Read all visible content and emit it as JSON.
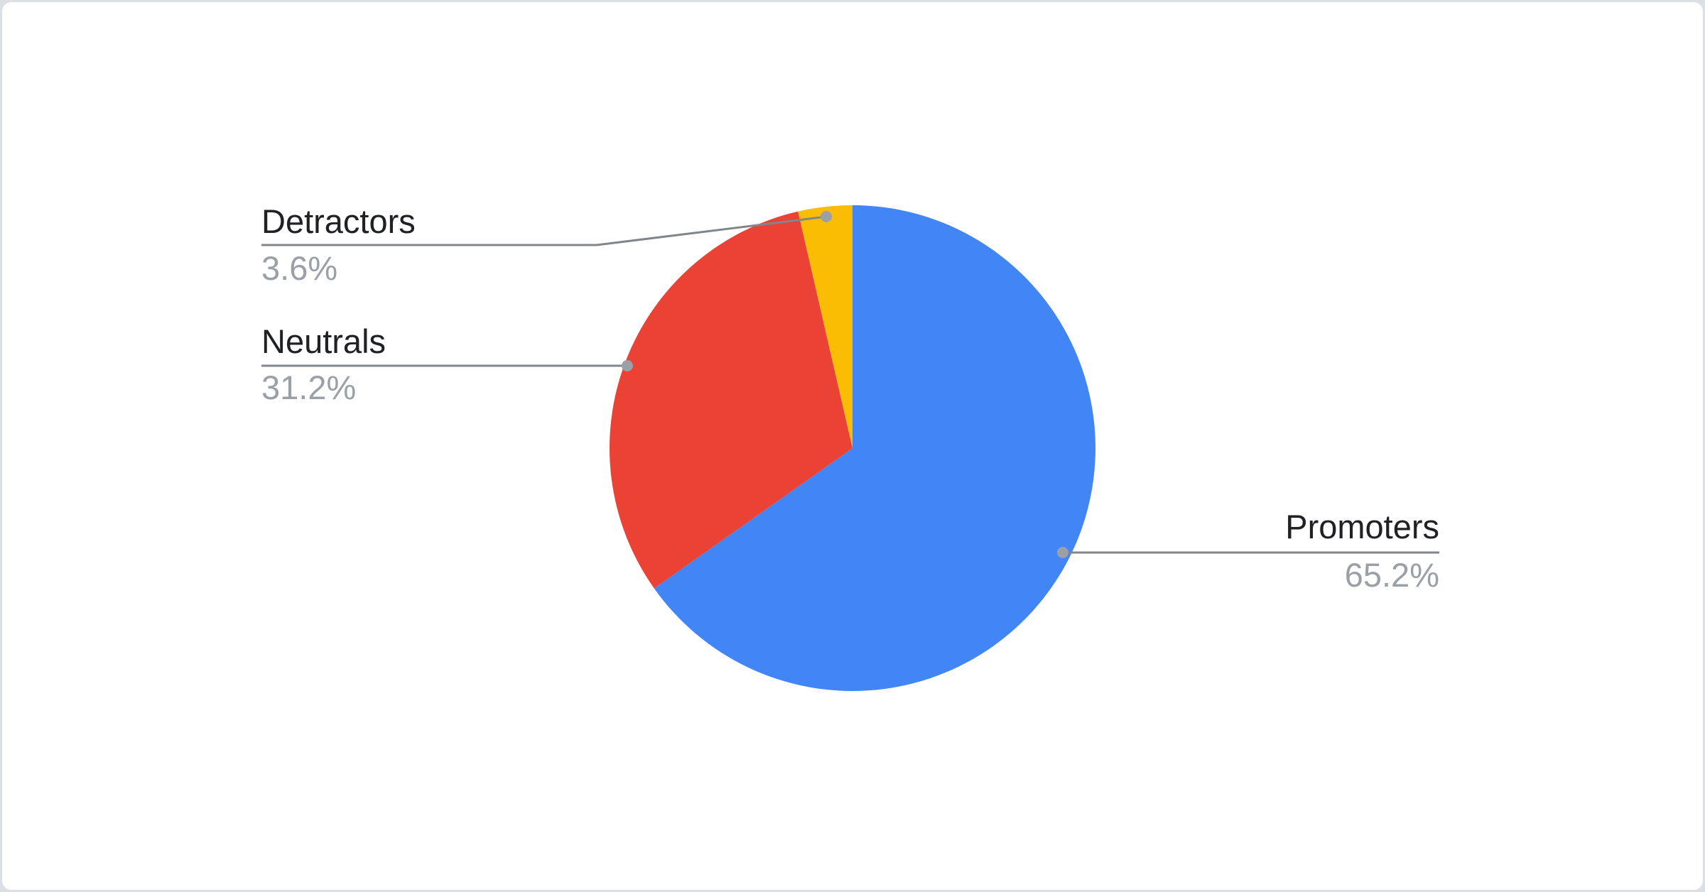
{
  "page": {
    "background": "#dce0e5",
    "card_background": "#ffffff"
  },
  "chart_data": {
    "type": "pie",
    "title": "",
    "legend_position": "none",
    "labels_style": "outside-callouts",
    "start_angle_deg": 0,
    "direction": "clockwise",
    "slices": [
      {
        "label": "Promoters",
        "value": 65.2,
        "percent_label": "65.2%",
        "color": "#4285f4"
      },
      {
        "label": "Neutrals",
        "value": 31.2,
        "percent_label": "31.2%",
        "color": "#ea4335"
      },
      {
        "label": "Detractors",
        "value": 3.6,
        "percent_label": "3.6%",
        "color": "#fbbc04"
      }
    ],
    "label_color": "#202124",
    "value_color": "#9aa0a6",
    "leader_line_color": "#80868b",
    "leader_dot_color": "#9aa0a6"
  }
}
